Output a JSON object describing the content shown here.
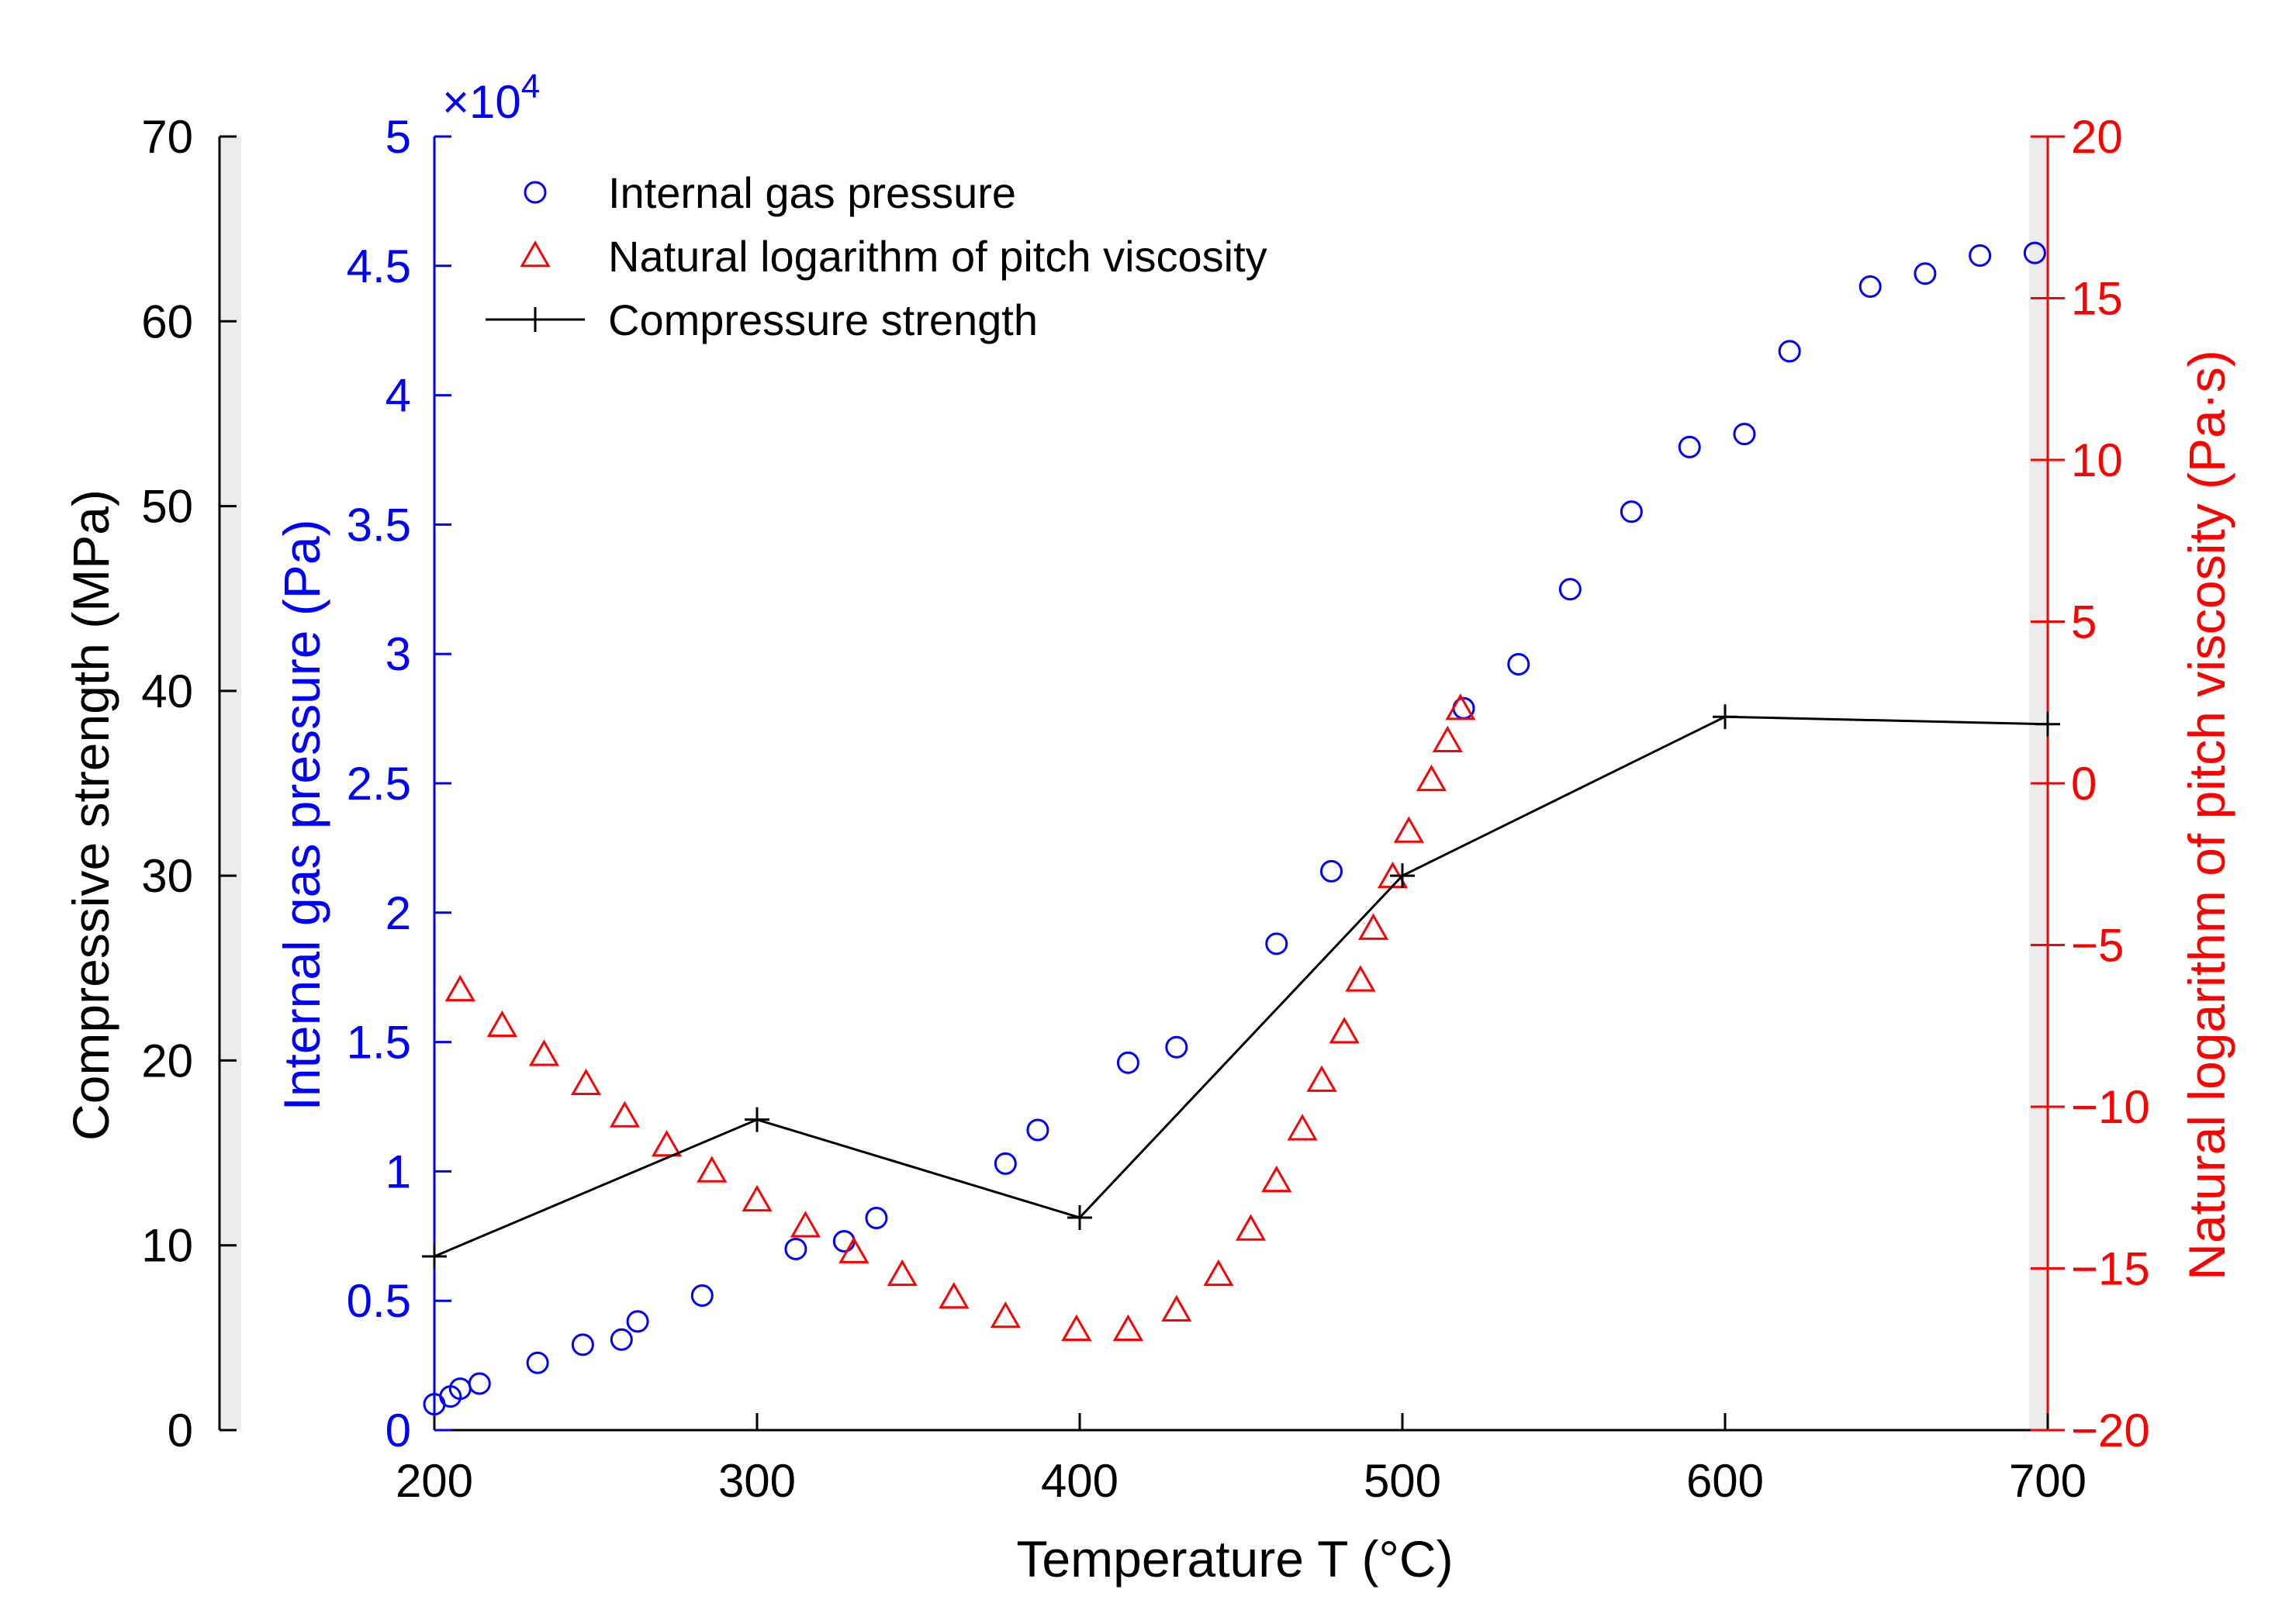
{
  "chart_data": {
    "type": "scatter",
    "xlabel": "Temperature T (°C)",
    "xlim": [
      200,
      700
    ],
    "xticks": [
      200,
      300,
      400,
      500,
      600,
      700
    ],
    "axes": {
      "compressive": {
        "label": "Compressive strength (MPa)",
        "lim": [
          0,
          70
        ],
        "ticks": [
          0,
          10,
          20,
          30,
          40,
          50,
          60,
          70
        ],
        "color": "#000000"
      },
      "pressure": {
        "label": "Internal gas pressure (Pa)",
        "lim": [
          0,
          5
        ],
        "ticks": [
          "0",
          "0.5",
          "1",
          "1.5",
          "2",
          "2.5",
          "3",
          "3.5",
          "4",
          "4.5",
          "5"
        ],
        "multiplier_base": "×10",
        "multiplier_exp": "4",
        "color": "#0000ff"
      },
      "viscosity": {
        "label": "Natural logarithm of pitch viscosity (Pa·s)",
        "lim": [
          -20,
          20
        ],
        "ticks": [
          "−20",
          "−15",
          "−10",
          "−5",
          "0",
          "5",
          "10",
          "15",
          "20"
        ],
        "color": "#ff0000"
      }
    },
    "legend_position": "top-left",
    "series": [
      {
        "name": "Internal gas pressure",
        "axis": "pressure",
        "marker": "circle",
        "color": "#0000ff",
        "points": [
          [
            200,
            0.1
          ],
          [
            205,
            0.13
          ],
          [
            208,
            0.16
          ],
          [
            214,
            0.18
          ],
          [
            232,
            0.26
          ],
          [
            246,
            0.33
          ],
          [
            258,
            0.35
          ],
          [
            263,
            0.42
          ],
          [
            283,
            0.52
          ],
          [
            312,
            0.7
          ],
          [
            327,
            0.73
          ],
          [
            337,
            0.82
          ],
          [
            377,
            1.03
          ],
          [
            387,
            1.16
          ],
          [
            415,
            1.42
          ],
          [
            430,
            1.48
          ],
          [
            461,
            1.88
          ],
          [
            478,
            2.16
          ],
          [
            519,
            2.79
          ],
          [
            536,
            2.96
          ],
          [
            552,
            3.25
          ],
          [
            571,
            3.55
          ],
          [
            589,
            3.8
          ],
          [
            606,
            3.85
          ],
          [
            620,
            4.17
          ],
          [
            645,
            4.42
          ],
          [
            662,
            4.47
          ],
          [
            679,
            4.54
          ],
          [
            696,
            4.55
          ]
        ]
      },
      {
        "name": "Natural logarithm of pitch viscosity",
        "axis": "viscosity",
        "marker": "triangle",
        "color": "#ff0000",
        "points": [
          [
            208,
            -6.4
          ],
          [
            221,
            -7.5
          ],
          [
            234,
            -8.4
          ],
          [
            247,
            -9.3
          ],
          [
            259,
            -10.3
          ],
          [
            272,
            -11.2
          ],
          [
            286,
            -12.0
          ],
          [
            300,
            -12.9
          ],
          [
            315,
            -13.7
          ],
          [
            330,
            -14.5
          ],
          [
            345,
            -15.2
          ],
          [
            361,
            -15.9
          ],
          [
            377,
            -16.5
          ],
          [
            399,
            -16.9
          ],
          [
            415,
            -16.9
          ],
          [
            430,
            -16.3
          ],
          [
            443,
            -15.2
          ],
          [
            453,
            -13.8
          ],
          [
            461,
            -12.3
          ],
          [
            469,
            -10.7
          ],
          [
            475,
            -9.2
          ],
          [
            482,
            -7.7
          ],
          [
            487,
            -6.1
          ],
          [
            491,
            -4.5
          ],
          [
            497,
            -2.9
          ],
          [
            502,
            -1.5
          ],
          [
            509,
            0.1
          ],
          [
            514,
            1.3
          ],
          [
            518,
            2.3
          ]
        ]
      },
      {
        "name": "Compressure strength",
        "axis": "compressive",
        "marker": "plus",
        "color": "#000000",
        "line": true,
        "points": [
          [
            200,
            9.4
          ],
          [
            300,
            16.8
          ],
          [
            400,
            11.5
          ],
          [
            500,
            30.0
          ],
          [
            600,
            38.6
          ],
          [
            700,
            38.2
          ]
        ]
      }
    ]
  }
}
